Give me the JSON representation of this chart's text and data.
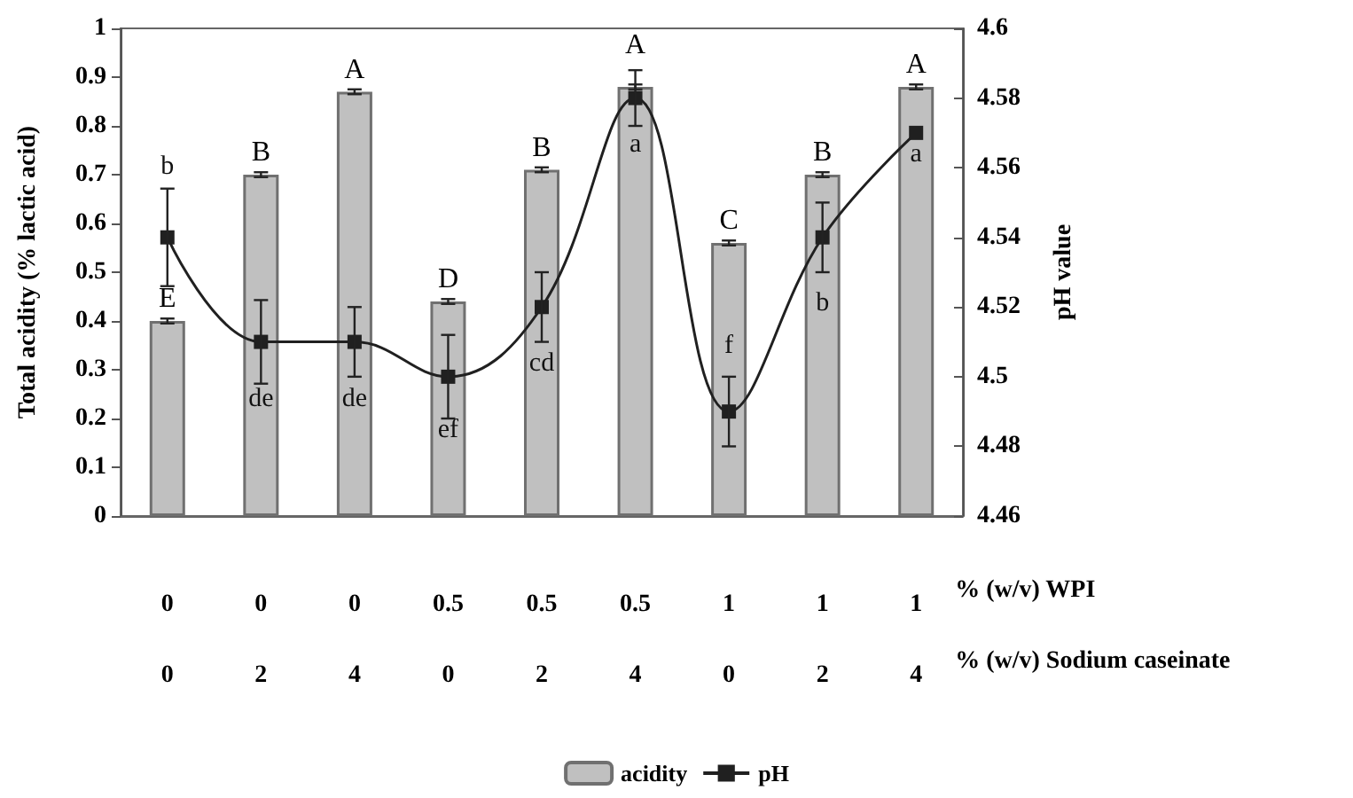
{
  "chart_data": {
    "type": "bar",
    "ylabel": "Total acidity (% lactic acid)",
    "y2label": "pH value",
    "xlabel": "% (w/v) WPI\n% (w/v) Sodium caseinate",
    "categories": [
      "0\n0",
      "0\n2",
      "0\n4",
      "0.5\n0",
      "0.5\n2",
      "0.5\n4",
      "1\n0",
      "1\n2",
      "1\n4"
    ],
    "series": [
      {
        "name": "acidity",
        "color": "#c0c0c0",
        "values": [
          0.4,
          0.7,
          0.87,
          0.44,
          0.71,
          0.88,
          0.56,
          0.7,
          0.88
        ],
        "errors": [
          0.005,
          0.005,
          0.005,
          0.005,
          0.005,
          0.005,
          0.005,
          0.005,
          0.005
        ]
      },
      {
        "name": "pH",
        "type": "line",
        "axis": "y2",
        "color": "#202020",
        "marker": "square",
        "values": [
          4.54,
          4.51,
          4.51,
          4.5,
          4.52,
          4.58,
          4.49,
          4.54,
          4.57
        ],
        "errors": [
          0.014,
          0.012,
          0.01,
          0.012,
          0.01,
          0.008,
          0.01,
          0.01,
          null
        ]
      }
    ],
    "ylim": [
      0,
      1
    ],
    "yticks": [
      0,
      0.1,
      0.2,
      0.3,
      0.4,
      0.5,
      0.6,
      0.7,
      0.8,
      0.9,
      1
    ],
    "y2lim": [
      4.46,
      4.6
    ],
    "y2ticks": [
      4.46,
      4.48,
      4.5,
      4.52,
      4.54,
      4.56,
      4.58,
      4.6
    ],
    "annotations": [
      "E",
      "B",
      "A",
      "D",
      "B",
      "A",
      "C",
      "B",
      "A",
      "b",
      "de",
      "de",
      "ef",
      "cd",
      "a",
      "f",
      "b",
      "a"
    ],
    "legend": "bottom",
    "grid": false
  }
}
